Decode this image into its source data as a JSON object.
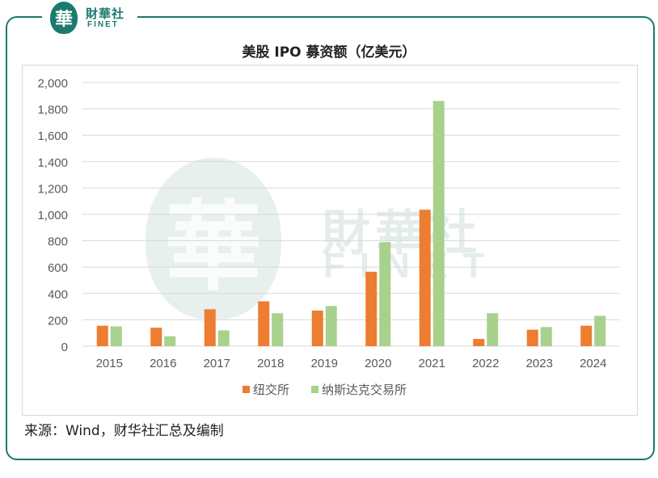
{
  "logo": {
    "badge_char": "華",
    "name_cn": "財華社",
    "name_en": "FINET"
  },
  "watermark": {
    "badge_char": "華",
    "name_cn": "財華社",
    "name_en": "FINET"
  },
  "source_note": "来源：Wind，财华社汇总及编制",
  "colors": {
    "frame": "#1a7a6e",
    "nyse": "#ed7d31",
    "nasdaq": "#a9d18e"
  },
  "chart_data": {
    "type": "bar",
    "title": "美股 IPO 募资额（亿美元）",
    "xlabel": "",
    "ylabel": "",
    "categories": [
      "2015",
      "2016",
      "2017",
      "2018",
      "2019",
      "2020",
      "2021",
      "2022",
      "2023",
      "2024"
    ],
    "series": [
      {
        "name": "纽交所",
        "color": "#ed7d31",
        "values": [
          155,
          140,
          280,
          340,
          270,
          565,
          1035,
          55,
          125,
          155
        ]
      },
      {
        "name": "纳斯达克交易所",
        "color": "#a9d18e",
        "values": [
          150,
          75,
          120,
          250,
          305,
          790,
          1860,
          250,
          145,
          230
        ]
      }
    ],
    "ylim": [
      0,
      2000
    ],
    "yticks": [
      0,
      200,
      400,
      600,
      800,
      1000,
      1200,
      1400,
      1600,
      1800,
      2000
    ],
    "ytick_labels": [
      "0",
      "200",
      "400",
      "600",
      "800",
      "1,000",
      "1,200",
      "1,400",
      "1,600",
      "1,800",
      "2,000"
    ],
    "grid": true,
    "legend": "bottom"
  }
}
